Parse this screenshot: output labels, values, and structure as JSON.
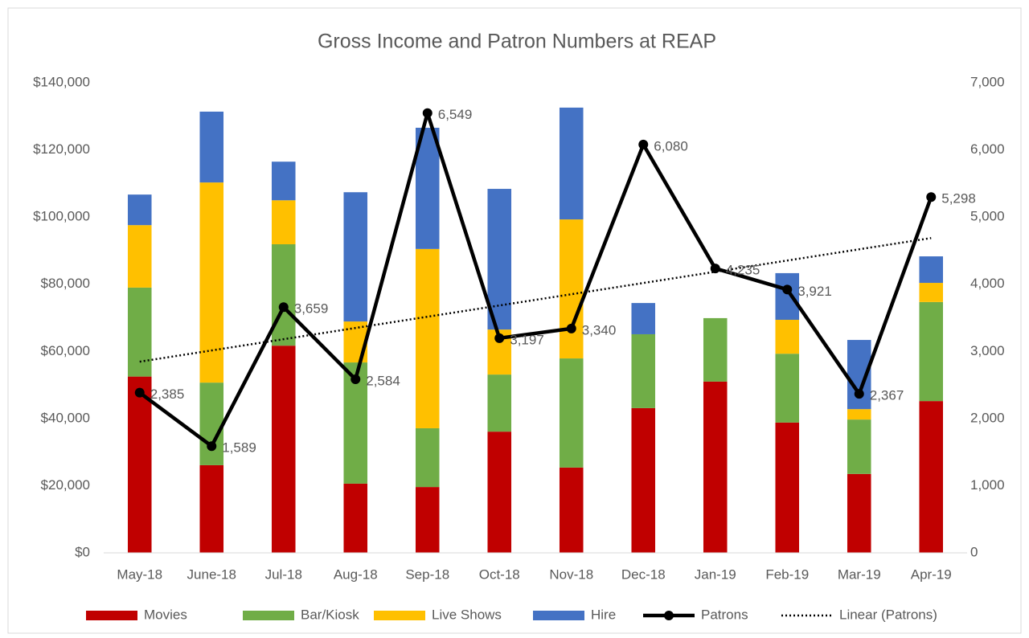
{
  "chart_data": {
    "type": "bar",
    "stacked": true,
    "title": "Gross Income and Patron Numbers at REAP",
    "categories": [
      "May-18",
      "June-18",
      "Jul-18",
      "Aug-18",
      "Sep-18",
      "Oct-18",
      "Nov-18",
      "Dec-18",
      "Jan-19",
      "Feb-19",
      "Mar-19",
      "Apr-19"
    ],
    "series": [
      {
        "name": "Movies",
        "color": "#c00000",
        "values": [
          52500,
          26100,
          61700,
          20600,
          19600,
          36100,
          25400,
          43100,
          51000,
          38800,
          23500,
          45200
        ]
      },
      {
        "name": "Bar/Kiosk",
        "color": "#70ad47",
        "values": [
          26500,
          24600,
          30200,
          36100,
          17500,
          17000,
          32500,
          22000,
          18900,
          20500,
          16200,
          29500
        ]
      },
      {
        "name": "Live Shows",
        "color": "#ffc000",
        "values": [
          18600,
          59600,
          13100,
          12200,
          53400,
          13400,
          41400,
          0,
          0,
          10100,
          3100,
          5700
        ]
      },
      {
        "name": "Hire",
        "color": "#4472c4",
        "values": [
          9100,
          21100,
          11500,
          38500,
          36100,
          41900,
          33300,
          9300,
          0,
          13900,
          20600,
          7900
        ]
      },
      {
        "name": "Patrons",
        "type": "line",
        "axis": "y2",
        "color": "#000000",
        "values": [
          2385,
          1589,
          3659,
          2584,
          6549,
          3197,
          3340,
          6080,
          4235,
          3921,
          2367,
          5298
        ],
        "value_labels": [
          "2,385",
          "1,589",
          "3,659",
          "2,584",
          "6,549",
          "3,197",
          "3,340",
          "6,080",
          "4,235",
          "3,921",
          "2,367",
          "5,298"
        ]
      }
    ],
    "trendline": {
      "name": "Linear (Patrons)",
      "type": "linear",
      "series": 4,
      "color": "#000000"
    },
    "ylim": [
      0,
      140000
    ],
    "yticks": [
      {
        "value": 0,
        "label": "$0"
      },
      {
        "value": 20000,
        "label": "$20,000"
      },
      {
        "value": 40000,
        "label": "$40,000"
      },
      {
        "value": 60000,
        "label": "$60,000"
      },
      {
        "value": 80000,
        "label": "$80,000"
      },
      {
        "value": 100000,
        "label": "$100,000"
      },
      {
        "value": 120000,
        "label": "$120,000"
      },
      {
        "value": 140000,
        "label": "$140,000"
      }
    ],
    "y2lim": [
      0,
      7000
    ],
    "y2ticks": [
      0,
      {
        "value": 1000,
        "label": "1,000"
      },
      {
        "value": 2000,
        "label": "2,000"
      },
      {
        "value": 3000,
        "label": "3,000"
      },
      {
        "value": 4000,
        "label": "4,000"
      },
      {
        "value": 5000,
        "label": "5,000"
      },
      {
        "value": 6000,
        "label": "6,000"
      },
      {
        "value": 7000,
        "label": "7,000"
      }
    ],
    "grid": false,
    "legend": "bottom"
  }
}
